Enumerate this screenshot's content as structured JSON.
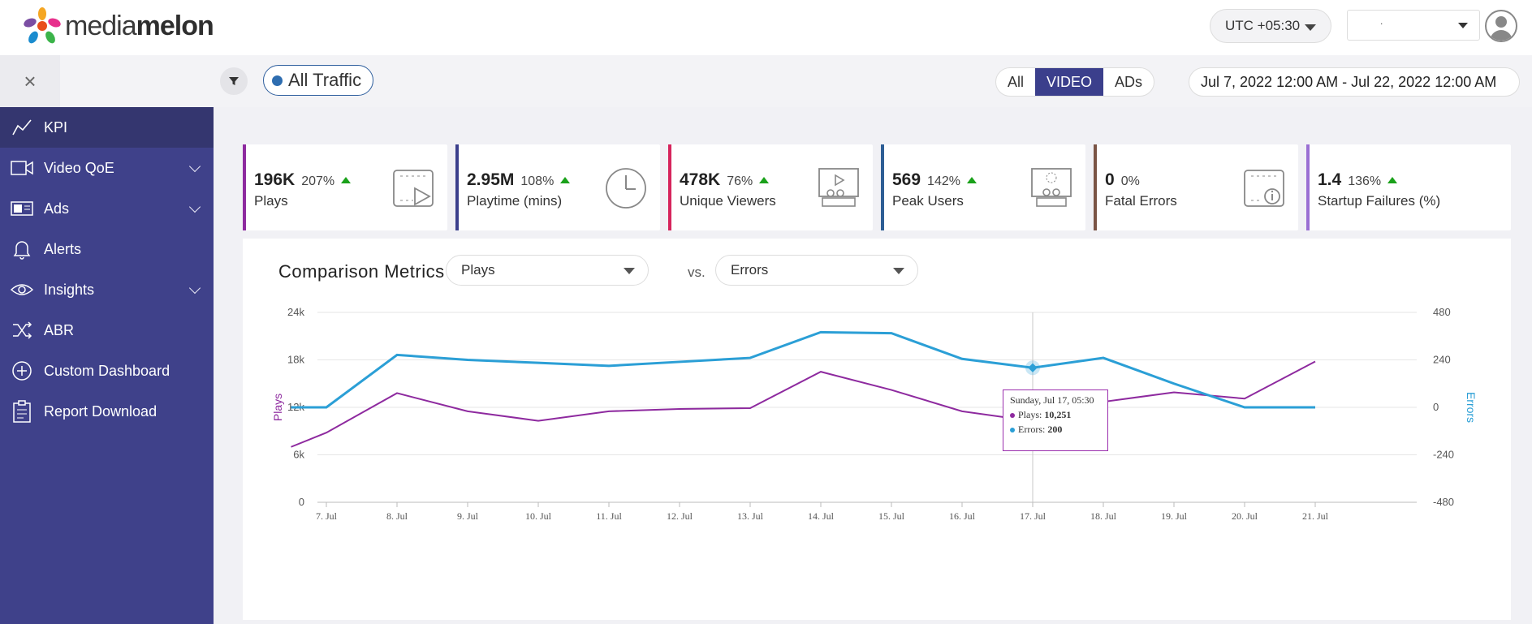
{
  "app": {
    "logo_text_light": "media",
    "logo_text_bold": "melon",
    "timezone": "UTC +05:30",
    "account": ".",
    "close_glyph": "×"
  },
  "filters": {
    "traffic_label": "All Traffic",
    "segments": [
      "All",
      "VIDEO",
      "ADs"
    ],
    "active_segment": "VIDEO",
    "date_range": "Jul 7, 2022 12:00 AM - Jul 22, 2022 12:00 AM"
  },
  "sidebar": {
    "items": [
      {
        "label": "KPI",
        "icon": "kpi-line-icon",
        "active": true
      },
      {
        "label": "Video QoE",
        "icon": "video-camera-icon",
        "expandable": true
      },
      {
        "label": "Ads",
        "icon": "ads-icon",
        "expandable": true
      },
      {
        "label": "Alerts",
        "icon": "bell-icon"
      },
      {
        "label": "Insights",
        "icon": "eye-icon",
        "expandable": true
      },
      {
        "label": "ABR",
        "icon": "shuffle-icon"
      },
      {
        "label": "Custom Dashboard",
        "icon": "plus-circle-icon"
      },
      {
        "label": "Report Download",
        "icon": "clipboard-icon"
      }
    ]
  },
  "kpis": [
    {
      "value": "196K",
      "pct": "207%",
      "trend": "up",
      "label": "Plays",
      "color": "#8e2a9f",
      "icon": "play-screen-icon"
    },
    {
      "value": "2.95M",
      "pct": "108%",
      "trend": "up",
      "label": "Playtime (mins)",
      "color": "#3b3f8c",
      "icon": "clock-icon"
    },
    {
      "value": "478K",
      "pct": "76%",
      "trend": "up",
      "label": "Unique Viewers",
      "color": "#d6245c",
      "icon": "viewers-icon"
    },
    {
      "value": "569",
      "pct": "142%",
      "trend": "up",
      "label": "Peak Users",
      "color": "#2d5e95",
      "icon": "peak-users-icon"
    },
    {
      "value": "0",
      "pct": "0%",
      "trend": "none",
      "label": "Fatal Errors",
      "color": "#7a5445",
      "icon": "error-screen-icon"
    },
    {
      "value": "1.4",
      "pct": "136%",
      "trend": "up",
      "label": "Startup Failures (%)",
      "color": "#9a6fd3",
      "icon": ""
    }
  ],
  "comparison": {
    "title": "Comparison Metrics",
    "metric_a": "Plays",
    "vs": "vs.",
    "metric_b": "Errors"
  },
  "tooltip": {
    "date": "Sunday, Jul 17, 05:30",
    "plays_label": "Plays:",
    "plays_value": "10,251",
    "errors_label": "Errors:",
    "errors_value": "200"
  },
  "chart_data": {
    "type": "line",
    "categories": [
      "7. Jul",
      "8. Jul",
      "9. Jul",
      "10. Jul",
      "11. Jul",
      "12. Jul",
      "13. Jul",
      "14. Jul",
      "15. Jul",
      "16. Jul",
      "17. Jul",
      "18. Jul",
      "19. Jul",
      "20. Jul",
      "21. Jul"
    ],
    "x": [
      6.5,
      7.0,
      8.0,
      9.0,
      10.0,
      11.0,
      12.0,
      13.0,
      14.0,
      15.0,
      16.0,
      17.0,
      18.0,
      19.0,
      20.0,
      21.0
    ],
    "series": [
      {
        "name": "Plays",
        "axis": "left",
        "color": "#8e2a9f",
        "values": [
          7000,
          8800,
          13800,
          11500,
          10300,
          11500,
          11800,
          11900,
          16500,
          14200,
          11500,
          10251,
          12700,
          13900,
          13100,
          17800
        ]
      },
      {
        "name": "Errors",
        "axis": "right",
        "color": "#2b9fd6",
        "values": [
          0,
          0,
          265,
          240,
          225,
          210,
          230,
          250,
          380,
          375,
          245,
          200,
          250,
          120,
          0,
          0
        ]
      }
    ],
    "left_axis": {
      "label": "Plays",
      "ticks": [
        "0",
        "6k",
        "12k",
        "18k",
        "24k"
      ],
      "ylim": [
        0,
        24000
      ]
    },
    "right_axis": {
      "label": "Errors",
      "ticks": [
        "-480",
        "-240",
        "0",
        "240",
        "480"
      ],
      "ylim": [
        -480,
        480
      ]
    },
    "highlight_index": 11,
    "grid": true
  }
}
